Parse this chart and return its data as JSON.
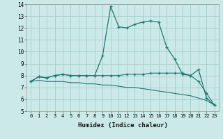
{
  "xlabel": "Humidex (Indice chaleur)",
  "xlim": [
    -0.5,
    23.5
  ],
  "ylim": [
    5,
    14
  ],
  "xticks": [
    0,
    1,
    2,
    3,
    4,
    5,
    6,
    7,
    8,
    9,
    10,
    11,
    12,
    13,
    14,
    15,
    16,
    17,
    18,
    19,
    20,
    21,
    22,
    23
  ],
  "yticks": [
    5,
    6,
    7,
    8,
    9,
    10,
    11,
    12,
    13,
    14
  ],
  "bg_color": "#cce9e9",
  "grid_color": "#aacfcf",
  "line_color": "#1a7a6e",
  "series1_x": [
    0,
    1,
    2,
    3,
    4,
    5,
    6,
    7,
    8,
    9,
    10,
    11,
    12,
    13,
    14,
    15,
    16,
    17,
    18,
    19,
    20,
    21,
    22,
    23
  ],
  "series1_y": [
    7.5,
    7.9,
    7.8,
    8.0,
    8.1,
    8.0,
    8.0,
    8.0,
    8.0,
    9.7,
    13.8,
    12.1,
    12.0,
    12.3,
    12.5,
    12.6,
    12.5,
    10.4,
    9.4,
    8.1,
    8.0,
    8.5,
    6.1,
    5.5
  ],
  "series2_x": [
    0,
    1,
    2,
    3,
    4,
    5,
    6,
    7,
    8,
    9,
    10,
    11,
    12,
    13,
    14,
    15,
    16,
    17,
    18,
    19,
    20,
    21,
    22,
    23
  ],
  "series2_y": [
    7.5,
    7.9,
    7.8,
    8.0,
    8.1,
    8.0,
    8.0,
    8.0,
    8.0,
    8.0,
    8.0,
    8.0,
    8.1,
    8.1,
    8.1,
    8.2,
    8.2,
    8.2,
    8.2,
    8.2,
    8.0,
    7.5,
    6.5,
    5.5
  ],
  "series3_x": [
    0,
    1,
    2,
    3,
    4,
    5,
    6,
    7,
    8,
    9,
    10,
    11,
    12,
    13,
    14,
    15,
    16,
    17,
    18,
    19,
    20,
    21,
    22,
    23
  ],
  "series3_y": [
    7.5,
    7.6,
    7.5,
    7.5,
    7.5,
    7.4,
    7.4,
    7.3,
    7.3,
    7.2,
    7.2,
    7.1,
    7.0,
    7.0,
    6.9,
    6.8,
    6.7,
    6.6,
    6.5,
    6.4,
    6.3,
    6.1,
    5.9,
    5.5
  ]
}
